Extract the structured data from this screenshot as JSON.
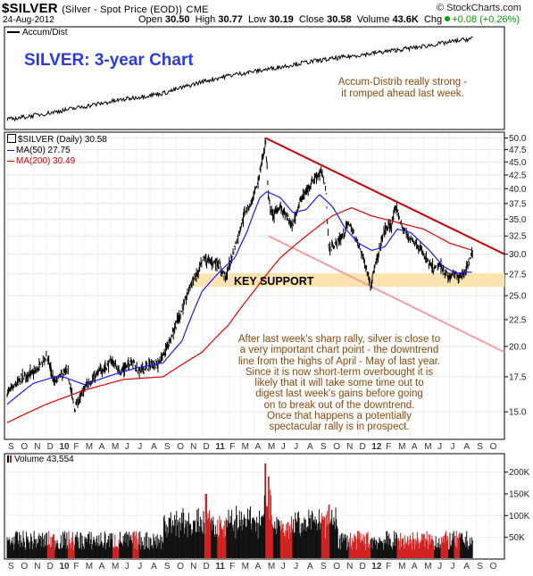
{
  "header": {
    "symbol": "$SILVER",
    "description": "(Silver - Spot Price (EOD))",
    "exchange": "CME",
    "brand": "© StockCharts.com",
    "date": "24-Aug-2012",
    "open_label": "Open",
    "open": "30.50",
    "high_label": "High",
    "high": "30.77",
    "low_label": "Low",
    "low": "30.19",
    "close_label": "Close",
    "close": "30.58",
    "volume_label": "Volume",
    "volume": "43.6K",
    "chg_label": "Chg",
    "chg": "+0.08 (+0.26%)"
  },
  "accum_panel": {
    "legend": "Accum/Dist",
    "title": "SILVER: 3-year Chart",
    "note_line1": "Accum-Distrib really strong -",
    "note_line2": "it romped ahead last week."
  },
  "price_panel": {
    "legend_main": "$SILVER (Daily) 30.58",
    "legend_ma50": "MA(50) 27.75",
    "legend_ma200": "MA(200) 30.49",
    "support_label": "KEY SUPPORT",
    "commentary": [
      "After last week's sharp rally, silver is close to",
      "a very important chart point - the downtrend",
      "line from the highs of April - May of last year.",
      "Since it is now short-term overbought it is",
      "likely that it will take some time out to",
      "digest last week's gains before going",
      "on to break out of the downtrend.",
      "Once that happens a potentially",
      "spectacular rally is in prospect."
    ]
  },
  "volume_panel": {
    "legend": "Volume 43,554"
  },
  "months": [
    "S",
    "O",
    "N",
    "D",
    "10",
    "F",
    "M",
    "A",
    "M",
    "J",
    "J",
    "A",
    "S",
    "O",
    "N",
    "D",
    "11",
    "F",
    "M",
    "A",
    "M",
    "J",
    "J",
    "A",
    "S",
    "O",
    "N",
    "D",
    "12",
    "F",
    "M",
    "A",
    "M",
    "J",
    "J",
    "A",
    "S",
    "O"
  ],
  "colors": {
    "price_line": "#000000",
    "ma50": "#1a1aff",
    "ma200": "#e00000",
    "downtrend": "#cc0000",
    "lower_channel": "#f2a0a0",
    "support_zone": "#fde3b0",
    "volume_up": "#111111",
    "volume_down": "#d02020",
    "title": "#2b3bdc",
    "annotation": "#8b4a0e"
  },
  "chart_data": {
    "type": "line",
    "title": "SILVER: 3-year Chart",
    "x_axis_months": [
      "S",
      "O",
      "N",
      "D",
      "10",
      "F",
      "M",
      "A",
      "M",
      "J",
      "J",
      "A",
      "S",
      "O",
      "N",
      "D",
      "11",
      "F",
      "M",
      "A",
      "M",
      "J",
      "J",
      "A",
      "S",
      "O",
      "N",
      "D",
      "12",
      "F",
      "M",
      "A",
      "M",
      "J",
      "J",
      "A",
      "S",
      "O"
    ],
    "x_period": [
      "2009-09",
      "2012-10"
    ],
    "y_axis_price": {
      "ticks": [
        "15.0",
        "17.5",
        "20.0",
        "22.5",
        "25.0",
        "27.5",
        "30.0",
        "32.5",
        "35.0",
        "37.5",
        "40.0",
        "42.5",
        "45.0",
        "47.5",
        "50.0"
      ],
      "scale": "log",
      "ylim": [
        13.5,
        50.5
      ]
    },
    "y_axis_volume": {
      "ticks": [
        "50K",
        "100K",
        "150K",
        "200K"
      ],
      "ylim": [
        0,
        230000
      ]
    },
    "price_series": {
      "name": "$SILVER (Daily) 30.58",
      "points": [
        [
          "2009-09-01",
          16.3
        ],
        [
          "2009-09-20",
          16.8
        ],
        [
          "2009-10-05",
          17.4
        ],
        [
          "2009-10-20",
          17.7
        ],
        [
          "2009-11-05",
          17.8
        ],
        [
          "2009-11-20",
          18.5
        ],
        [
          "2009-12-03",
          19.2
        ],
        [
          "2009-12-20",
          17.0
        ],
        [
          "2010-01-05",
          17.6
        ],
        [
          "2010-01-20",
          17.9
        ],
        [
          "2010-02-05",
          15.2
        ],
        [
          "2010-02-20",
          16.0
        ],
        [
          "2010-03-05",
          16.9
        ],
        [
          "2010-03-20",
          17.3
        ],
        [
          "2010-04-05",
          17.9
        ],
        [
          "2010-04-20",
          18.3
        ],
        [
          "2010-05-05",
          18.8
        ],
        [
          "2010-05-20",
          17.9
        ],
        [
          "2010-06-05",
          18.2
        ],
        [
          "2010-06-20",
          18.9
        ],
        [
          "2010-07-05",
          17.9
        ],
        [
          "2010-07-20",
          18.2
        ],
        [
          "2010-08-05",
          18.5
        ],
        [
          "2010-08-20",
          18.5
        ],
        [
          "2010-09-05",
          19.5
        ],
        [
          "2010-09-20",
          21.0
        ],
        [
          "2010-10-05",
          22.5
        ],
        [
          "2010-10-20",
          24.0
        ],
        [
          "2010-11-05",
          26.5
        ],
        [
          "2010-11-20",
          27.5
        ],
        [
          "2010-12-05",
          29.5
        ],
        [
          "2010-12-20",
          29.0
        ],
        [
          "2011-01-05",
          29.0
        ],
        [
          "2011-01-25",
          27.0
        ],
        [
          "2011-02-10",
          30.0
        ],
        [
          "2011-02-25",
          33.0
        ],
        [
          "2011-03-10",
          36.0
        ],
        [
          "2011-03-25",
          37.5
        ],
        [
          "2011-04-10",
          41.0
        ],
        [
          "2011-04-25",
          47.5
        ],
        [
          "2011-04-28",
          49.5
        ],
        [
          "2011-05-05",
          38.0
        ],
        [
          "2011-05-15",
          35.5
        ],
        [
          "2011-06-01",
          37.0
        ],
        [
          "2011-06-20",
          35.0
        ],
        [
          "2011-06-30",
          33.8
        ],
        [
          "2011-07-15",
          37.5
        ],
        [
          "2011-08-01",
          39.5
        ],
        [
          "2011-08-20",
          42.0
        ],
        [
          "2011-09-05",
          43.0
        ],
        [
          "2011-09-15",
          40.5
        ],
        [
          "2011-09-23",
          30.5
        ],
        [
          "2011-10-10",
          31.5
        ],
        [
          "2011-10-25",
          32.5
        ],
        [
          "2011-11-08",
          34.5
        ],
        [
          "2011-11-25",
          32.0
        ],
        [
          "2011-12-10",
          30.0
        ],
        [
          "2011-12-29",
          26.3
        ],
        [
          "2012-01-15",
          29.5
        ],
        [
          "2012-01-31",
          33.5
        ],
        [
          "2012-02-15",
          34.0
        ],
        [
          "2012-02-28",
          37.0
        ],
        [
          "2012-03-10",
          34.0
        ],
        [
          "2012-03-25",
          32.5
        ],
        [
          "2012-04-10",
          31.8
        ],
        [
          "2012-04-25",
          30.5
        ],
        [
          "2012-05-10",
          29.0
        ],
        [
          "2012-05-25",
          28.0
        ],
        [
          "2012-06-10",
          28.5
        ],
        [
          "2012-06-28",
          27.0
        ],
        [
          "2012-07-10",
          27.5
        ],
        [
          "2012-07-25",
          27.3
        ],
        [
          "2012-08-10",
          28.0
        ],
        [
          "2012-08-24",
          30.58
        ]
      ]
    },
    "ma50_series": {
      "name": "MA(50) 27.75",
      "points": [
        [
          "2009-09-01",
          15.5
        ],
        [
          "2009-11-01",
          17.0
        ],
        [
          "2010-01-01",
          17.6
        ],
        [
          "2010-03-01",
          16.9
        ],
        [
          "2010-05-01",
          17.6
        ],
        [
          "2010-07-01",
          18.2
        ],
        [
          "2010-09-01",
          18.6
        ],
        [
          "2010-10-15",
          20.5
        ],
        [
          "2010-12-01",
          25.5
        ],
        [
          "2011-01-15",
          28.0
        ],
        [
          "2011-02-15",
          29.5
        ],
        [
          "2011-03-15",
          33.0
        ],
        [
          "2011-04-15",
          38.5
        ],
        [
          "2011-05-01",
          39.5
        ],
        [
          "2011-06-01",
          38.5
        ],
        [
          "2011-07-01",
          36.0
        ],
        [
          "2011-08-01",
          36.5
        ],
        [
          "2011-09-01",
          39.0
        ],
        [
          "2011-10-01",
          37.0
        ],
        [
          "2011-11-01",
          33.5
        ],
        [
          "2011-12-01",
          31.5
        ],
        [
          "2012-01-01",
          30.5
        ],
        [
          "2012-02-01",
          31.0
        ],
        [
          "2012-03-01",
          33.5
        ],
        [
          "2012-04-01",
          33.0
        ],
        [
          "2012-05-15",
          30.5
        ],
        [
          "2012-06-15",
          28.5
        ],
        [
          "2012-07-15",
          27.6
        ],
        [
          "2012-08-24",
          27.75
        ]
      ]
    },
    "ma200_series": {
      "name": "MA(200) 30.49",
      "points": [
        [
          "2009-09-01",
          14.3
        ],
        [
          "2009-12-01",
          15.5
        ],
        [
          "2010-03-01",
          16.5
        ],
        [
          "2010-06-01",
          17.3
        ],
        [
          "2010-09-01",
          17.5
        ],
        [
          "2010-12-01",
          19.5
        ],
        [
          "2011-02-01",
          22.0
        ],
        [
          "2011-04-01",
          25.5
        ],
        [
          "2011-06-01",
          29.5
        ],
        [
          "2011-08-01",
          32.5
        ],
        [
          "2011-10-01",
          35.5
        ],
        [
          "2011-11-15",
          36.8
        ],
        [
          "2012-01-01",
          35.5
        ],
        [
          "2012-03-01",
          34.5
        ],
        [
          "2012-05-01",
          33.5
        ],
        [
          "2012-07-01",
          31.5
        ],
        [
          "2012-08-24",
          30.49
        ]
      ]
    },
    "accum_dist": {
      "name": "Accum/Dist",
      "relative_level_points": [
        [
          "2009-09-01",
          0.05
        ],
        [
          "2009-12-01",
          0.12
        ],
        [
          "2010-03-01",
          0.2
        ],
        [
          "2010-06-01",
          0.28
        ],
        [
          "2010-09-01",
          0.35
        ],
        [
          "2010-12-01",
          0.48
        ],
        [
          "2011-02-01",
          0.55
        ],
        [
          "2011-05-01",
          0.62
        ],
        [
          "2011-08-01",
          0.7
        ],
        [
          "2011-11-01",
          0.76
        ],
        [
          "2012-02-01",
          0.82
        ],
        [
          "2012-05-01",
          0.88
        ],
        [
          "2012-08-24",
          0.97
        ]
      ]
    },
    "volume_series": {
      "name": "Volume 43,554",
      "notable": [
        [
          "2010-12-10",
          150000
        ],
        [
          "2011-04-28",
          220000
        ],
        [
          "2011-05-05",
          190000
        ],
        [
          "2011-09-23",
          125000
        ],
        [
          "2012-08-24",
          43554
        ]
      ]
    },
    "downtrend_line": [
      [
        "2011-04-28",
        50.0
      ],
      [
        "2012-10-31",
        30.0
      ]
    ],
    "lower_channel_line": [
      [
        "2011-05-05",
        32.5
      ],
      [
        "2012-10-31",
        19.5
      ]
    ],
    "key_support_zone": [
      26.0,
      27.6
    ],
    "annotations": [
      "KEY SUPPORT",
      "Accum-Distrib really strong - it romped ahead last week.",
      "After last week's sharp rally, silver is close to a very important chart point - the downtrend line from the highs of April - May of last year. Since it is now short-term overbought it is likely that it will take some time out to digest last week's gains before going on to break out of the downtrend. Once that happens a potentially spectacular rally is in prospect."
    ]
  }
}
